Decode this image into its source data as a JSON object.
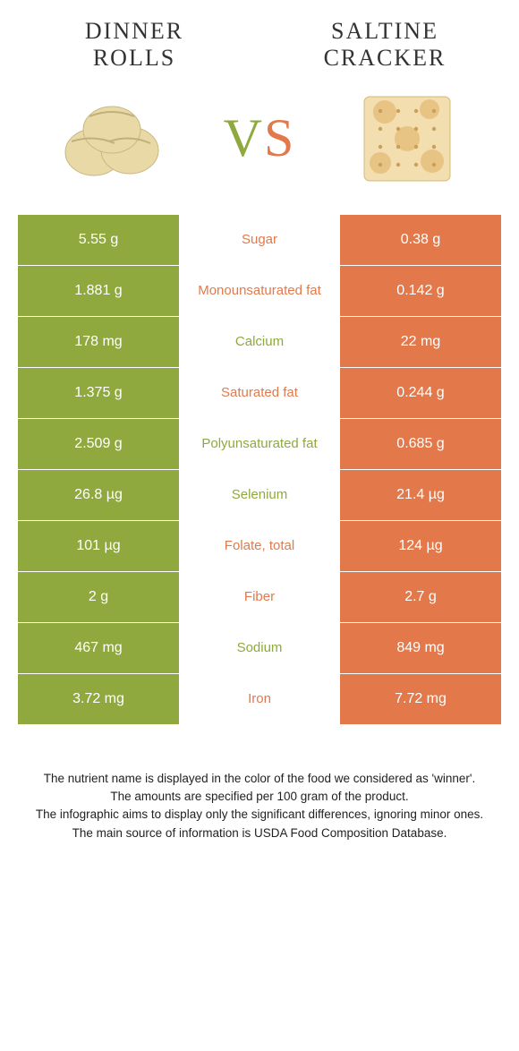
{
  "food_left": {
    "title_line1": "DINNER",
    "title_line2": "ROLLS",
    "color": "#8fa93e"
  },
  "food_right": {
    "title_line1": "SALTINE",
    "title_line2": "CRACKER",
    "color": "#e3794b"
  },
  "vs": {
    "v": "V",
    "s": "S"
  },
  "colors": {
    "left_bg": "#8fa93e",
    "right_bg": "#e3794b",
    "left_text": "#8fa93e",
    "right_text": "#e3794b"
  },
  "nutrients": [
    {
      "name": "Sugar",
      "left": "5.55 g",
      "right": "0.38 g",
      "winner": "right"
    },
    {
      "name": "Monounsaturated fat",
      "left": "1.881 g",
      "right": "0.142 g",
      "winner": "right"
    },
    {
      "name": "Calcium",
      "left": "178 mg",
      "right": "22 mg",
      "winner": "left"
    },
    {
      "name": "Saturated fat",
      "left": "1.375 g",
      "right": "0.244 g",
      "winner": "right"
    },
    {
      "name": "Polyunsaturated fat",
      "left": "2.509 g",
      "right": "0.685 g",
      "winner": "left"
    },
    {
      "name": "Selenium",
      "left": "26.8 µg",
      "right": "21.4 µg",
      "winner": "left"
    },
    {
      "name": "Folate, total",
      "left": "101 µg",
      "right": "124 µg",
      "winner": "right"
    },
    {
      "name": "Fiber",
      "left": "2 g",
      "right": "2.7 g",
      "winner": "right"
    },
    {
      "name": "Sodium",
      "left": "467 mg",
      "right": "849 mg",
      "winner": "left"
    },
    {
      "name": "Iron",
      "left": "3.72 mg",
      "right": "7.72 mg",
      "winner": "right"
    }
  ],
  "footer": {
    "line1": "The nutrient name is displayed in the color of the food we considered as 'winner'.",
    "line2": "The amounts are specified per 100 gram of the product.",
    "line3": "The infographic aims to display only the significant differences, ignoring minor ones.",
    "line4": "The main source of information is USDA Food Composition Database."
  }
}
